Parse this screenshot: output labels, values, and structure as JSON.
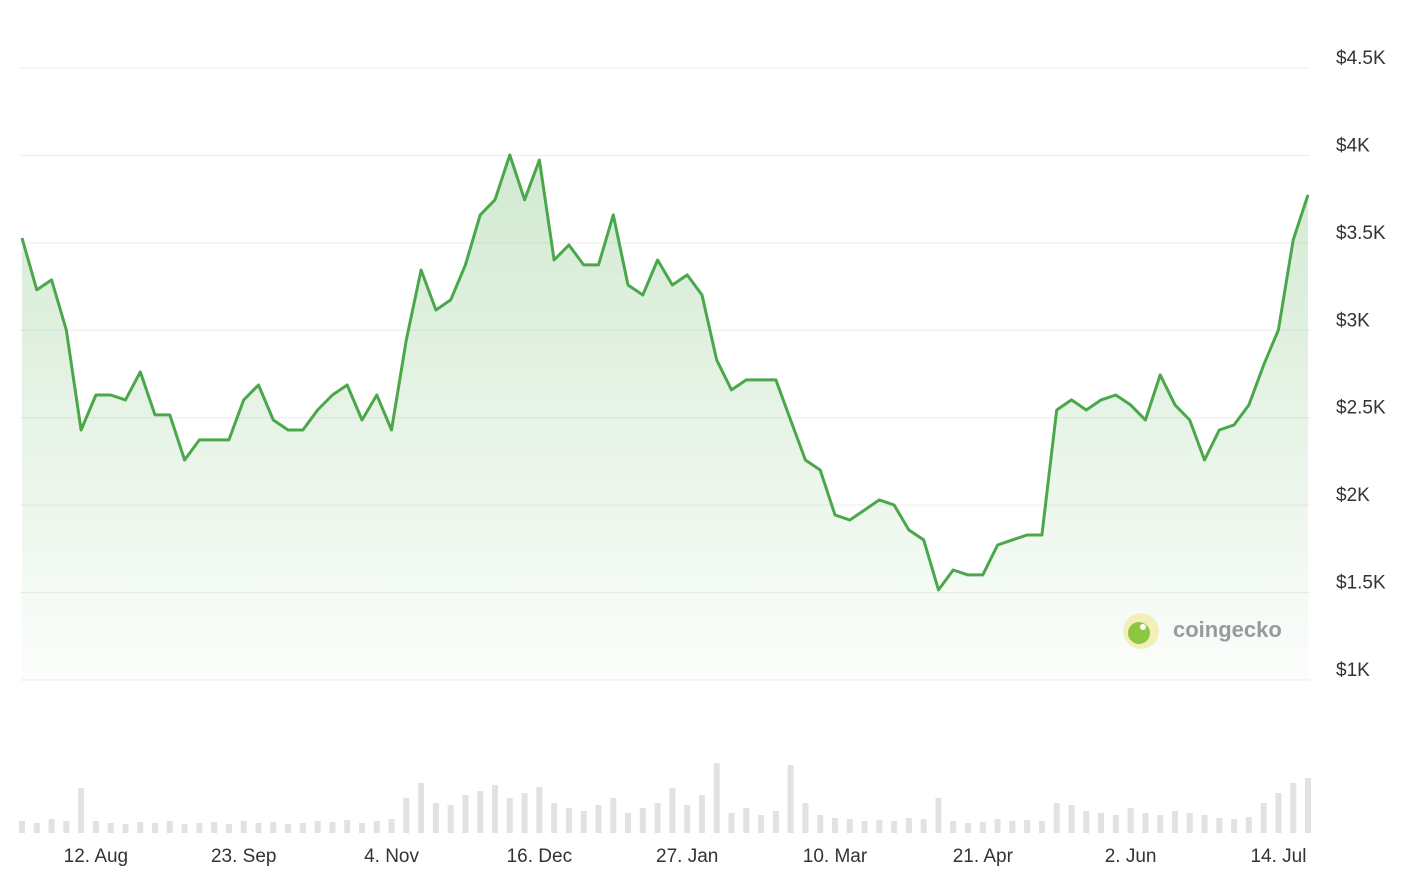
{
  "chart_data": {
    "type": "line",
    "categories": [
      null,
      null,
      null,
      null,
      null,
      "12. Aug",
      null,
      null,
      null,
      null,
      null,
      null,
      null,
      null,
      null,
      "23. Sep",
      null,
      null,
      null,
      null,
      null,
      null,
      null,
      null,
      null,
      "4. Nov",
      null,
      null,
      null,
      null,
      null,
      null,
      null,
      null,
      null,
      "16. Dec",
      null,
      null,
      null,
      null,
      null,
      null,
      null,
      null,
      null,
      "27. Jan",
      null,
      null,
      null,
      null,
      null,
      null,
      null,
      null,
      null,
      "10. Mar",
      null,
      null,
      null,
      null,
      null,
      null,
      null,
      null,
      null,
      "21. Apr",
      null,
      null,
      null,
      null,
      null,
      null,
      null,
      null,
      null,
      "2. Jun",
      null,
      null,
      null,
      null,
      null,
      null,
      null,
      null,
      null,
      "14. Jul",
      null,
      null
    ],
    "values": [
      3528,
      3231,
      3288,
      3002,
      2430,
      2630,
      2630,
      2602,
      2762,
      2516,
      2516,
      2258,
      2373,
      2373,
      2373,
      2602,
      2687,
      2487,
      2430,
      2430,
      2544,
      2630,
      2687,
      2487,
      2630,
      2430,
      2945,
      3345,
      3116,
      3174,
      3374,
      3660,
      3746,
      4003,
      3746,
      3974,
      3402,
      3488,
      3374,
      3374,
      3660,
      3259,
      3202,
      3402,
      3259,
      3317,
      3202,
      2830,
      2659,
      2716,
      2716,
      2716,
      2487,
      2258,
      2201,
      1944,
      1915,
      1972,
      2030,
      2001,
      1858,
      1801,
      1515,
      1629,
      1601,
      1601,
      1772,
      1801,
      1829,
      1829,
      2544,
      2602,
      2544,
      2602,
      2630,
      2573,
      2487,
      2745,
      2573,
      2487,
      2258,
      2430,
      2459,
      2573,
      2802,
      3002,
      3517,
      3774
    ],
    "volume": [
      12,
      10,
      14,
      12,
      45,
      12,
      10,
      9,
      11,
      10,
      12,
      9,
      10,
      11,
      9,
      12,
      10,
      11,
      9,
      10,
      12,
      11,
      13,
      10,
      12,
      14,
      35,
      50,
      30,
      28,
      38,
      42,
      48,
      35,
      40,
      46,
      30,
      25,
      22,
      28,
      35,
      20,
      25,
      30,
      45,
      28,
      38,
      70,
      20,
      25,
      18,
      22,
      68,
      30,
      18,
      15,
      14,
      12,
      13,
      12,
      15,
      14,
      35,
      12,
      10,
      11,
      14,
      12,
      13,
      12,
      30,
      28,
      22,
      20,
      18,
      25,
      20,
      18,
      22,
      20,
      18,
      15,
      14,
      16,
      30,
      40,
      50,
      55
    ],
    "color": "#4aa84a",
    "ylim": [
      1000,
      4500
    ],
    "yticks": [
      {
        "value": 1000,
        "label": "$1K"
      },
      {
        "value": 1500,
        "label": "$1.5K"
      },
      {
        "value": 2000,
        "label": "$2K"
      },
      {
        "value": 2500,
        "label": "$2.5K"
      },
      {
        "value": 3000,
        "label": "$3K"
      },
      {
        "value": 3500,
        "label": "$3.5K"
      },
      {
        "value": 4000,
        "label": "$4K"
      },
      {
        "value": 4500,
        "label": "$4.5K"
      }
    ],
    "grid": true,
    "watermark": "coingecko"
  }
}
